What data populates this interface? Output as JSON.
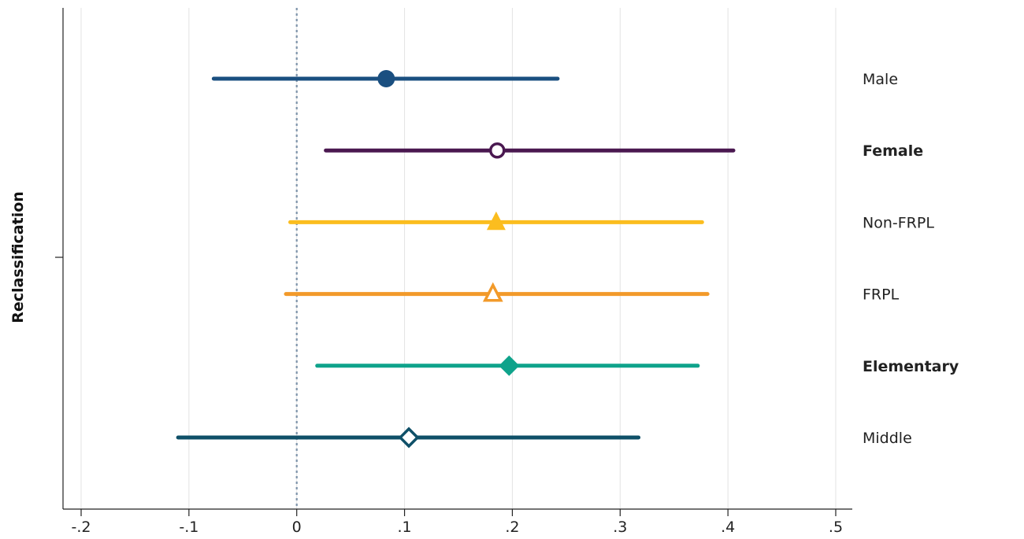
{
  "chart_data": {
    "type": "scatter",
    "subtype": "coefficient-plot-with-confidence-intervals",
    "title": "",
    "xlabel": "",
    "ylabel": "Reclassification",
    "xlim": [
      -0.2,
      0.5
    ],
    "x_ticks": [
      -0.2,
      -0.1,
      0,
      0.1,
      0.2,
      0.3,
      0.4,
      0.5
    ],
    "x_tick_labels": [
      "-.2",
      "-.1",
      "0",
      ".1",
      ".2",
      ".3",
      ".4",
      ".5"
    ],
    "grid": "vertical",
    "reference_line": {
      "x": 0,
      "style": "dotted",
      "color": "#7f94ab"
    },
    "series": [
      {
        "name": "Male",
        "estimate": 0.083,
        "ci_low": -0.077,
        "ci_high": 0.242,
        "marker": "circle-filled",
        "color": "#1a4f80",
        "label_bold": false
      },
      {
        "name": "Female",
        "estimate": 0.186,
        "ci_low": 0.027,
        "ci_high": 0.405,
        "marker": "circle-hollow",
        "color": "#4a1850",
        "label_bold": true
      },
      {
        "name": "Non-FRPL",
        "estimate": 0.185,
        "ci_low": -0.006,
        "ci_high": 0.376,
        "marker": "triangle-filled",
        "color": "#fbbd1f",
        "label_bold": false
      },
      {
        "name": "FRPL",
        "estimate": 0.182,
        "ci_low": -0.01,
        "ci_high": 0.381,
        "marker": "triangle-hollow",
        "color": "#f29a2a",
        "label_bold": false
      },
      {
        "name": "Elementary",
        "estimate": 0.197,
        "ci_low": 0.019,
        "ci_high": 0.372,
        "marker": "diamond-filled",
        "color": "#0fa38b",
        "label_bold": true
      },
      {
        "name": "Middle",
        "estimate": 0.104,
        "ci_low": -0.11,
        "ci_high": 0.317,
        "marker": "diamond-hollow",
        "color": "#0f5068",
        "label_bold": false
      }
    ]
  }
}
